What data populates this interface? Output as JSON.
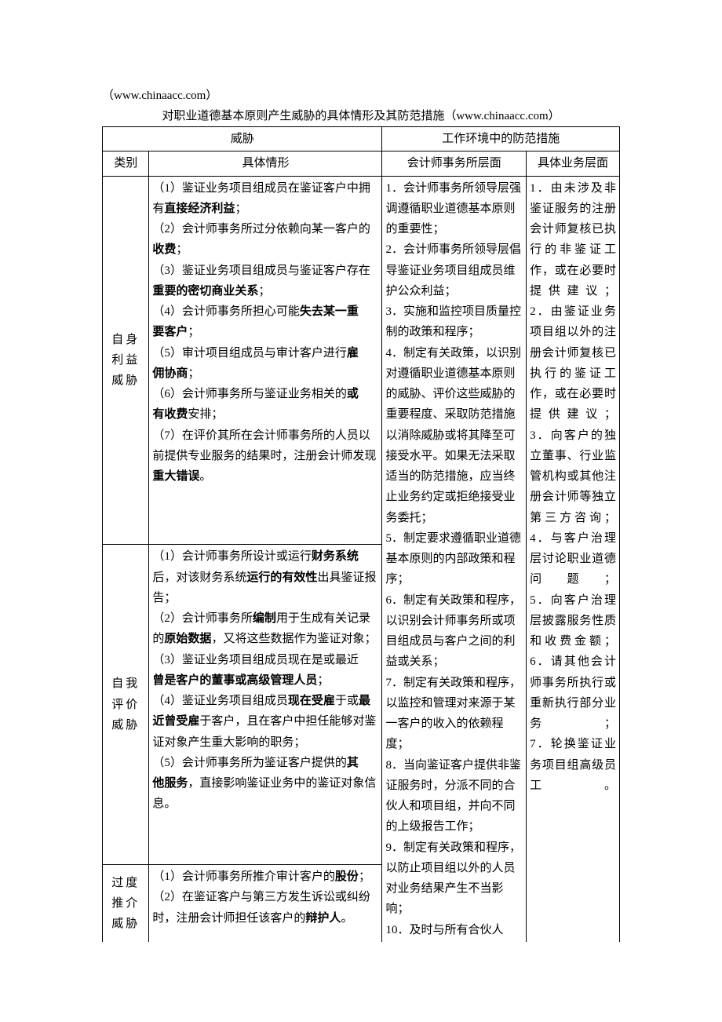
{
  "preHeader": "（www.chinaacc.com）",
  "caption": "对职业道德基本原则产生威胁的具体情形及其防范措施（www.chinaacc.com）",
  "headers": {
    "threat": "威胁",
    "measures": "工作环境中的防范措施",
    "category": "类别",
    "situation": "具体情形",
    "firmLevel": "会计师事务所层面",
    "businessLevel": "具体业务层面"
  },
  "categories": {
    "selfInterest": "自身利益威胁",
    "selfReview": "自我评价威胁",
    "advocacy": "过度推介威胁"
  },
  "situations": {
    "selfInterest": {
      "i1a": "（1）鉴证业务项目组成员在鉴证客户中拥有",
      "i1b": "直接经济利益",
      "i1c": "；",
      "i2a": "（2）会计师事务所过分依赖向某一客户的",
      "i2b": "收费",
      "i2c": "；",
      "i3a": "（3）鉴证业务项目组成员与鉴证客户存在",
      "i3b": "重要的密切商业关系",
      "i3c": "；",
      "i4a": "（4）会计师事务所担心可能",
      "i4b1": "失去某一重",
      "i4b2": "要客户",
      "i4c": "；",
      "i5a": "（5）审计项目组成员与审计客户进行",
      "i5b1": "雇",
      "i5b2": "佣协商",
      "i5c": "；",
      "i6a": "（6）会计师事务所与鉴证业务相关的",
      "i6b1": "或",
      "i6b2": "有收费",
      "i6c": "安排；",
      "i7a": "（7）在评价其所在会计师事务所的人员以前提供专业服务的结果时，注册会计师发现",
      "i7b": "重大错误",
      "i7c": "。"
    },
    "selfReview": {
      "r1a": "（1）会计师事务所设计或运行",
      "r1b": "财务系统",
      "r1c": "后，对该财务系统",
      "r1d": "运行的有效性",
      "r1e": "出具鉴证报告；",
      "r2a": "（2）会计师事务所",
      "r2b": "编制",
      "r2c": "用于生成有关记录的",
      "r2d": "原始数据",
      "r2e": "，又将这些数据作为鉴证对象；",
      "r3a": "（3）鉴证业务项目组成员现在是或最近",
      "r3b": "曾是客户的董事或高级管理人员",
      "r3c": "；",
      "r4a": "（4）鉴证业务项目组成员",
      "r4b1": "现在受雇",
      "r4c": "于或",
      "r4b2": "最近曾受雇",
      "r4d": "于客户，且在客户中担任能够对鉴证对象产生重大影响的职务；",
      "r5a": "（5）会计师事务所为鉴证客户提供的",
      "r5b1": "其",
      "r5b2": "他服务",
      "r5c": "，直接影响鉴证业务中的鉴证对象信息。"
    },
    "advocacy": {
      "a1a": "（1）会计师事务所推介审计客户的",
      "a1b": "股份",
      "a1c": "；",
      "a2a": "（2）在鉴证客户与第三方发生诉讼或纠纷时，注册会计师担任该客户的",
      "a2b": "辩护人",
      "a2c": "。"
    }
  },
  "firmMeasures": {
    "m1": "1．会计师事务所领导层强调遵循职业道德基本原则的重要性；",
    "m2": "2．会计师事务所领导层倡导鉴证业务项目组成员维护公众利益；",
    "m3": "3．实施和监控项目质量控制的政策和程序；",
    "m4": "4．制定有关政策，以识别对遵循职业道德基本原则的威胁、评价这些威胁的重要程度、采取防范措施以消除威胁或将其降至可接受水平。如果无法采取适当的防范措施，应当终止业务约定或拒绝接受业务委托；",
    "m5": "5．制定要求遵循职业道德基本原则的内部政策和程序；",
    "m6": "6．制定有关政策和程序，以识别会计师事务所或项目组成员与客户之间的利益或关系；",
    "m7": "7．制定有关政策和程序，以监控和管理对来源于某一客户的收入的依赖程度；",
    "m8": "8．当向鉴证客户提供非鉴证服务时，分派不同的合伙人和项目组，并向不同的上级报告工作；",
    "m9": "9．制定有关政策和程序，以防止项目组以外的人员对业务结果产生不当影响；",
    "m10": "10．及时与所有合伙人"
  },
  "businessMeasures": {
    "b1": "1．由未涉及非鉴证服务的注册会计师复核已执行的非鉴证工作，或在必要时提供建议；",
    "b2": "2．由鉴证业务项目组以外的注册会计师复核已执行的鉴证工作，或在必要时提供建议；",
    "b3": "3．向客户的独立董事、行业监管机构或其他注册会计师等独立第三方咨询；",
    "b4": "4．与客户治理层讨论职业道德问题；",
    "b5": "5．向客户治理层披露服务性质和收费金额；",
    "b6": "6．请其他会计师事务所执行或重新执行部分业务；",
    "b7": "7．轮换鉴证业务项目组高级员工。"
  },
  "style": {
    "pageWidth": 920,
    "pageHeight": 1302,
    "background": "#ffffff",
    "textColor": "#000000",
    "borderColor": "#000000",
    "fontSizePx": 15,
    "lineHeight": 1.75,
    "fontFamily": "SimSun"
  }
}
